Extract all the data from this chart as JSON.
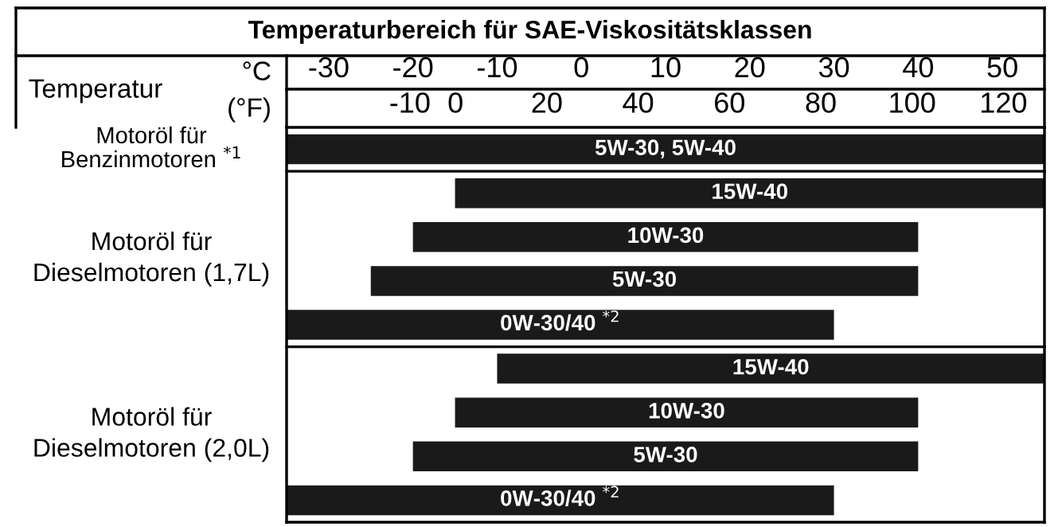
{
  "chart_data": {
    "type": "bar",
    "orientation": "horizontal",
    "title": "Temperaturbereich für SAE-Viskositätsklassen",
    "xlabel": "°C",
    "x2label": "(°F)",
    "annotations": [
      "Temperatur",
      "Motoröl für\nBenzinmotoren $^{*1}$",
      "Motoröl für\nDieselmotoren (1,7L)",
      "Motoröl für\nDieselmotoren (2,0L)"
    ],
    "categories": [
      "5W-30, 5W-40",
      "15W-40",
      "10W-30",
      "5W-30",
      "0W-30/40 $^{*2}$",
      "15W-40",
      "10W-30",
      "5W-30",
      "0W-30/40 $^{*2}$"
    ],
    "base": [
      -35,
      -15,
      -20,
      -25,
      -35,
      -10,
      -15,
      -20,
      -35
    ],
    "values": [
      90,
      70,
      60,
      65,
      65,
      65,
      55,
      60,
      65
    ],
    "color": "#1a1a1a",
    "xlim": [
      -35,
      55
    ],
    "xticks": [
      -30,
      -20,
      -10,
      0,
      10,
      20,
      30,
      40,
      50
    ],
    "x2lim": [
      -37,
      129
    ],
    "x2ticks": [
      -10,
      0,
      20,
      40,
      60,
      80,
      100,
      120
    ]
  }
}
